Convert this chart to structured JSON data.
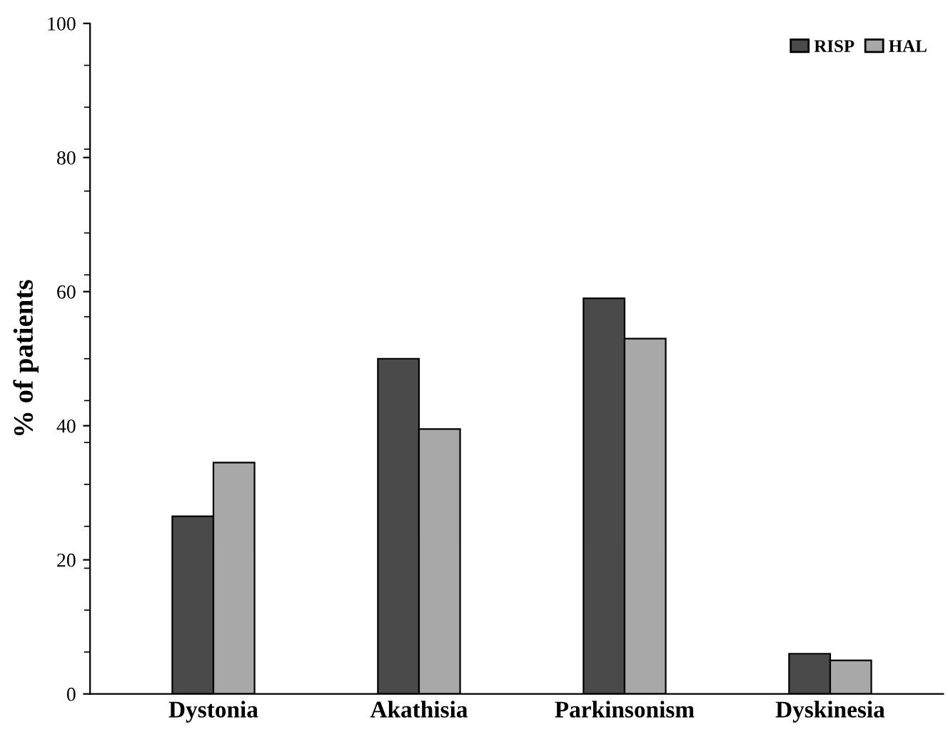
{
  "chart_data": {
    "type": "bar",
    "ylabel": "% of patients",
    "categories": [
      "Dystonia",
      "Akathisia",
      "Parkinsonism",
      "Dyskinesia"
    ],
    "series": [
      {
        "name": "RISP",
        "color": "#4a4a4a",
        "values": [
          26.5,
          50,
          59,
          6
        ]
      },
      {
        "name": "HAL",
        "color": "#a8a8a8",
        "values": [
          34.5,
          39.5,
          53,
          5
        ]
      }
    ],
    "ylim": [
      0,
      100
    ],
    "yticks": [
      0,
      20,
      40,
      60,
      80,
      100
    ],
    "grid": false,
    "legend": "top right"
  }
}
